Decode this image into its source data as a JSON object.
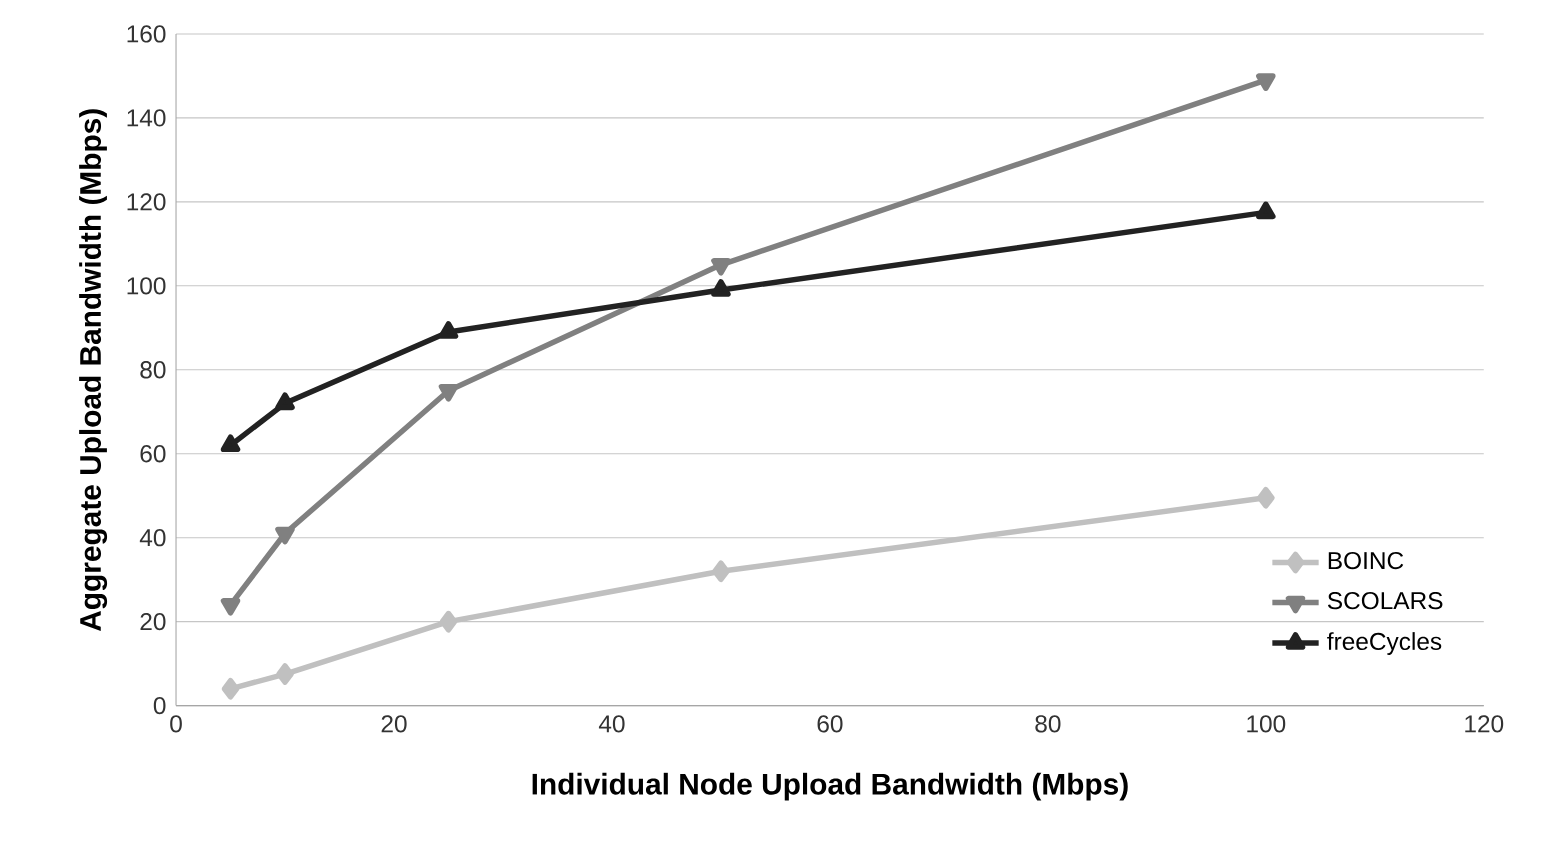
{
  "chart_data": {
    "type": "line",
    "xlabel": "Individual Node Upload Bandwidth (Mbps)",
    "ylabel": "Aggregate Upload Bandwidth (Mbps)",
    "x": [
      5,
      10,
      25,
      50,
      100
    ],
    "series": [
      {
        "name": "BOINC",
        "color": "#c0c0c0",
        "marker": "diamond",
        "values": [
          4,
          7.5,
          20,
          32,
          49.5
        ]
      },
      {
        "name": "SCOLARS",
        "color": "#808080",
        "marker": "triangle down",
        "values": [
          24,
          41,
          75,
          105,
          149
        ]
      },
      {
        "name": "freeCycles",
        "color": "#222222",
        "marker": "triangle",
        "values": [
          62,
          72,
          89,
          99,
          117.5
        ]
      }
    ],
    "xlim": [
      0,
      120
    ],
    "xticks": [
      0,
      20,
      40,
      60,
      80,
      100,
      120
    ],
    "ylim": [
      0,
      160
    ],
    "yticks": [
      0,
      20,
      40,
      60,
      80,
      100,
      120,
      140,
      160
    ],
    "grid": "y",
    "legend": "bottom right",
    "line_style": "solid"
  }
}
